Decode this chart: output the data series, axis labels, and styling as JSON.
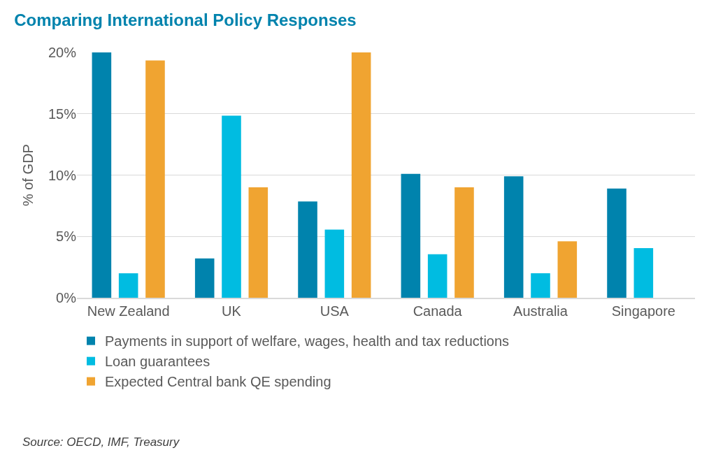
{
  "chart_data": {
    "type": "bar",
    "title": "Comparing International Policy Responses",
    "ylabel": "% of GDP",
    "categories": [
      "New Zealand",
      "UK",
      "USA",
      "Canada",
      "Australia",
      "Singapore"
    ],
    "series": [
      {
        "name": "Payments in support of welfare, wages, health and tax reductions",
        "color": "#0083ad",
        "values": [
          20,
          3.2,
          7.85,
          10.1,
          9.9,
          8.9
        ]
      },
      {
        "name": "Loan guarantees",
        "color": "#00bce1",
        "values": [
          2.0,
          14.85,
          5.55,
          3.55,
          2.0,
          4.05
        ]
      },
      {
        "name": "Expected Central bank QE spending",
        "color": "#f0a431",
        "values": [
          19.35,
          9.0,
          20,
          9.0,
          4.6,
          0
        ]
      }
    ],
    "ylim": [
      0,
      20
    ],
    "yticks": [
      {
        "value": 0,
        "label": "0%"
      },
      {
        "value": 5,
        "label": "5%"
      },
      {
        "value": 10,
        "label": "10%"
      },
      {
        "value": 15,
        "label": "15%"
      },
      {
        "value": 20,
        "label": "20%"
      }
    ],
    "grid": "y",
    "legend": "bottom",
    "annotations": [
      "Source: OECD, IMF, Treasury"
    ]
  }
}
